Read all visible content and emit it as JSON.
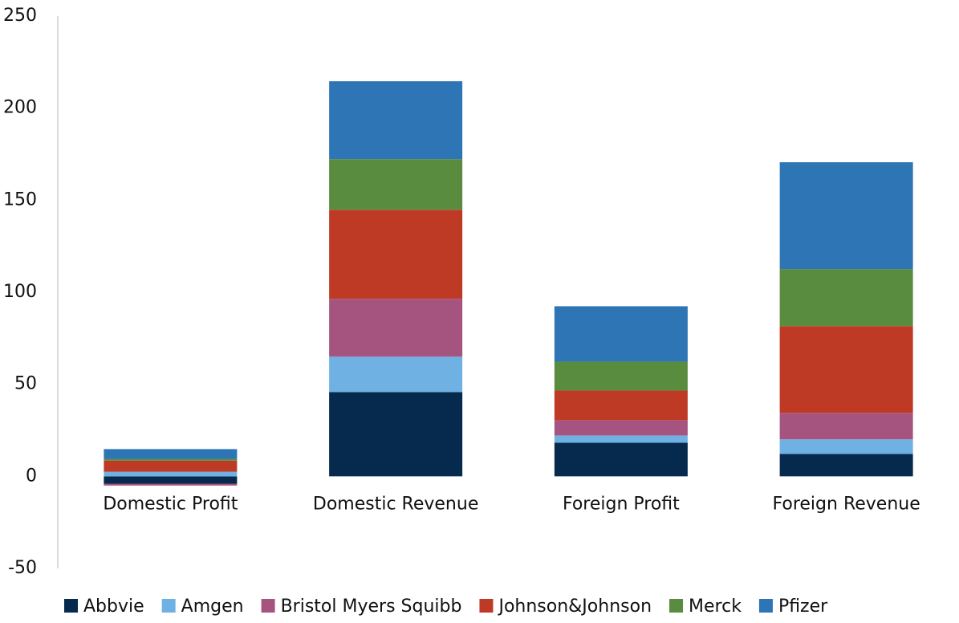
{
  "chart_data": {
    "type": "stacked_bar",
    "categories": [
      "Domestic Profit",
      "Domestic Revenue",
      "Foreign Profit",
      "Foreign Revenue"
    ],
    "series": [
      {
        "name": "Abbvie",
        "color": "#052a4e",
        "values": [
          -4,
          45.8,
          18.3,
          12.2
        ]
      },
      {
        "name": "Amgen",
        "color": "#6fb1e3",
        "values": [
          2.5,
          19.2,
          3.9,
          7.9
        ]
      },
      {
        "name": "Bristol Myers Squibb",
        "color": "#a5547f",
        "values": [
          -1,
          31.4,
          8.3,
          14.4
        ]
      },
      {
        "name": "Johnson&Johnson",
        "color": "#bf3a24",
        "values": [
          6,
          48.4,
          16.1,
          47.1
        ]
      },
      {
        "name": "Merck",
        "color": "#5a8c40",
        "values": [
          1,
          27.5,
          15.7,
          31
        ]
      },
      {
        "name": "Pfizer",
        "color": "#2e75b6",
        "values": [
          5.3,
          42.3,
          30.1,
          58
        ]
      }
    ],
    "ylim": [
      -50,
      250
    ],
    "yticks": [
      -50,
      0,
      50,
      100,
      150,
      200,
      250
    ],
    "grid": false,
    "legend": "bottom"
  }
}
